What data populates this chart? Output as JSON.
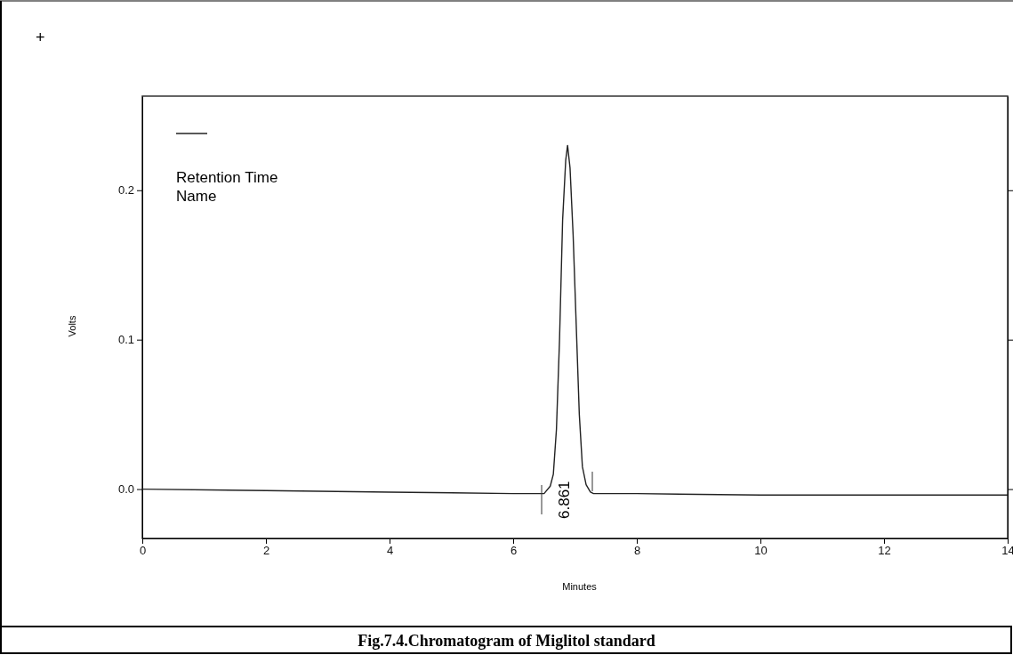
{
  "chart_data": {
    "type": "line",
    "title": "Fig.7.4.Chromatogram of Miglitol standard",
    "xlabel": "Minutes",
    "ylabel": "Volts",
    "x": [
      0,
      2,
      4,
      6,
      6.5,
      6.6,
      6.65,
      6.7,
      6.75,
      6.8,
      6.85,
      6.88,
      6.92,
      6.97,
      7.02,
      7.07,
      7.12,
      7.18,
      7.25,
      7.3,
      8,
      10,
      12,
      14
    ],
    "series": [
      {
        "color": "#222222",
        "values": [
          0,
          -0.001,
          -0.002,
          -0.003,
          -0.003,
          0.002,
          0.01,
          0.04,
          0.1,
          0.18,
          0.22,
          0.23,
          0.215,
          0.17,
          0.11,
          0.05,
          0.015,
          0.003,
          -0.002,
          -0.003,
          -0.003,
          -0.004,
          -0.004,
          -0.004
        ]
      }
    ],
    "xlim": [
      0,
      14
    ],
    "xticks": [
      0,
      2,
      4,
      6,
      8,
      10,
      12,
      14
    ],
    "ylim": [
      -0.033,
      0.263
    ],
    "yticks": [
      {
        "value": 0,
        "label": "0.0"
      },
      {
        "value": 0.1,
        "label": "0.1"
      },
      {
        "value": 0.2,
        "label": "0.2"
      }
    ],
    "grid": false,
    "annotations": [
      "+",
      "Retention Time",
      "Name",
      "6.861"
    ]
  }
}
